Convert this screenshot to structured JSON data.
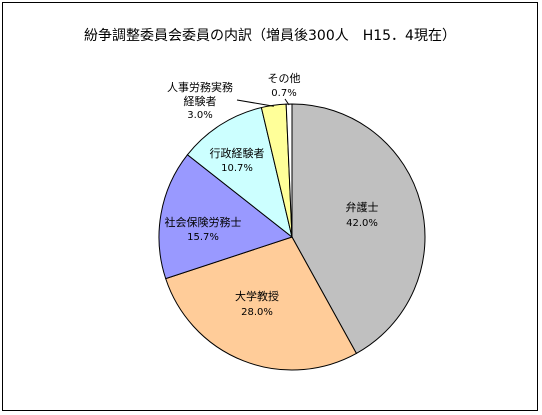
{
  "chart_data": {
    "type": "pie",
    "title": "紛争調整委員会委員の内訳（増員後300人　H15．4現在）",
    "slices": [
      {
        "label": "弁護士",
        "value": 42.0,
        "pct_label": "42.0%",
        "color": "#c0c0c0"
      },
      {
        "label": "大学教授",
        "value": 28.0,
        "pct_label": "28.0%",
        "color": "#ffcc99"
      },
      {
        "label": "社会保険労務士",
        "value": 15.7,
        "pct_label": "15.7%",
        "color": "#9999ff"
      },
      {
        "label": "行政経験者",
        "value": 10.7,
        "pct_label": "10.7%",
        "color": "#ccffff"
      },
      {
        "label_lines": [
          "人事労務実務",
          "経験者"
        ],
        "value": 3.0,
        "pct_label": "3.0%",
        "color": "#ffff99"
      },
      {
        "label": "その他",
        "value": 0.7,
        "pct_label": "0.7%",
        "color": "#ffffff"
      }
    ],
    "start": "12 o'clock",
    "direction": "clockwise",
    "legend": "none"
  }
}
